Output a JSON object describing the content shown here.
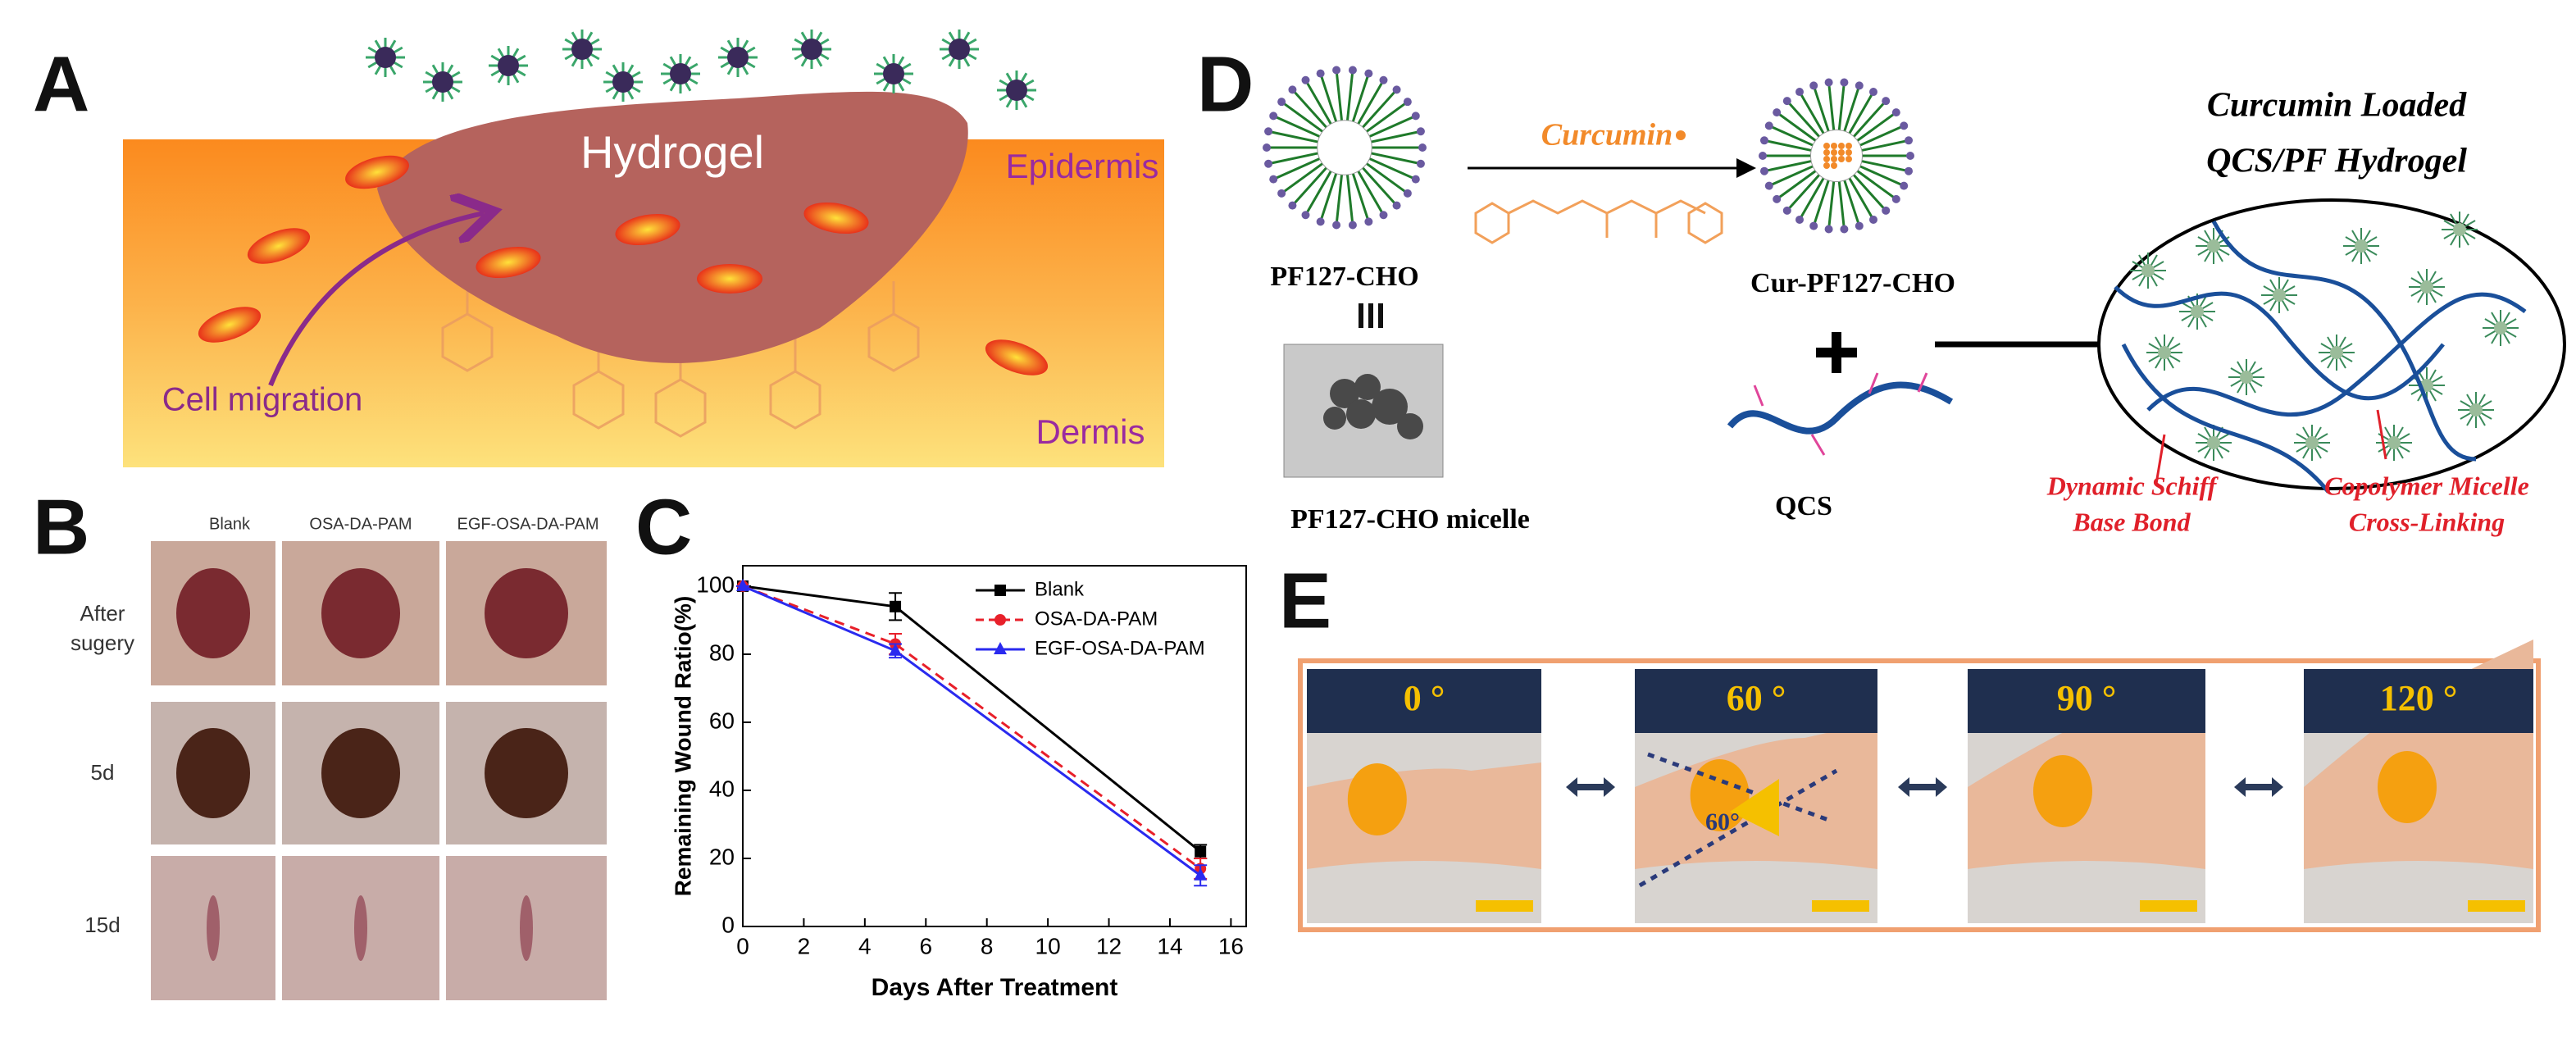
{
  "panel_labels": [
    "A",
    "B",
    "C",
    "D",
    "E"
  ],
  "panel_a": {
    "hydrogel": "Hydrogel",
    "epidermis": "Epidermis",
    "dermis": "Dermis",
    "cell_migration": "Cell migration"
  },
  "panel_b": {
    "columns": [
      "Blank",
      "OSA-DA-PAM",
      "EGF-OSA-DA-PAM"
    ],
    "rows": [
      [
        "After",
        "sugery"
      ],
      [
        "5d"
      ],
      [
        "15d"
      ]
    ]
  },
  "chart_data": {
    "type": "line",
    "x_label": "Days After Treatment",
    "y_label": "Remaining Wound Ratio(%)",
    "x": [
      0,
      5,
      15
    ],
    "series": [
      {
        "name": "Blank",
        "color": "#000000",
        "marker": "square",
        "dashed": false,
        "values": [
          100,
          94,
          22
        ],
        "errors": [
          0,
          4,
          2
        ]
      },
      {
        "name": "OSA-DA-PAM",
        "color": "#e8202a",
        "marker": "circle",
        "dashed": true,
        "values": [
          100,
          83,
          17
        ],
        "errors": [
          0,
          3,
          3
        ]
      },
      {
        "name": "EGF-OSA-DA-PAM",
        "color": "#2a2aef",
        "marker": "triangle",
        "dashed": false,
        "values": [
          100,
          81,
          15
        ],
        "errors": [
          0,
          2,
          3
        ]
      }
    ],
    "xlim": [
      0,
      16.5
    ],
    "ylim": [
      0,
      106
    ],
    "xticks": [
      0,
      2,
      4,
      6,
      8,
      10,
      12,
      14,
      16
    ],
    "yticks": [
      0,
      20,
      40,
      60,
      80,
      100
    ],
    "grid": false,
    "legend": "upper right"
  },
  "panel_d": {
    "curcumin": "Curcumin",
    "pf127": "PF127-CHO",
    "cur_pf127": "Cur-PF127-CHO",
    "micelle": "PF127-CHO micelle",
    "qcs": "QCS",
    "title": [
      "Curcumin Loaded",
      "QCS/PF Hydrogel"
    ],
    "schiff": [
      "Dynamic Schiff",
      "Base Bond"
    ],
    "copolymer": [
      "Copolymer Micelle",
      "Cross-Linking"
    ]
  },
  "panel_e": {
    "angles": [
      "0 °",
      "60 °",
      "90 °",
      "120 °"
    ],
    "inset_angle": "60°"
  }
}
